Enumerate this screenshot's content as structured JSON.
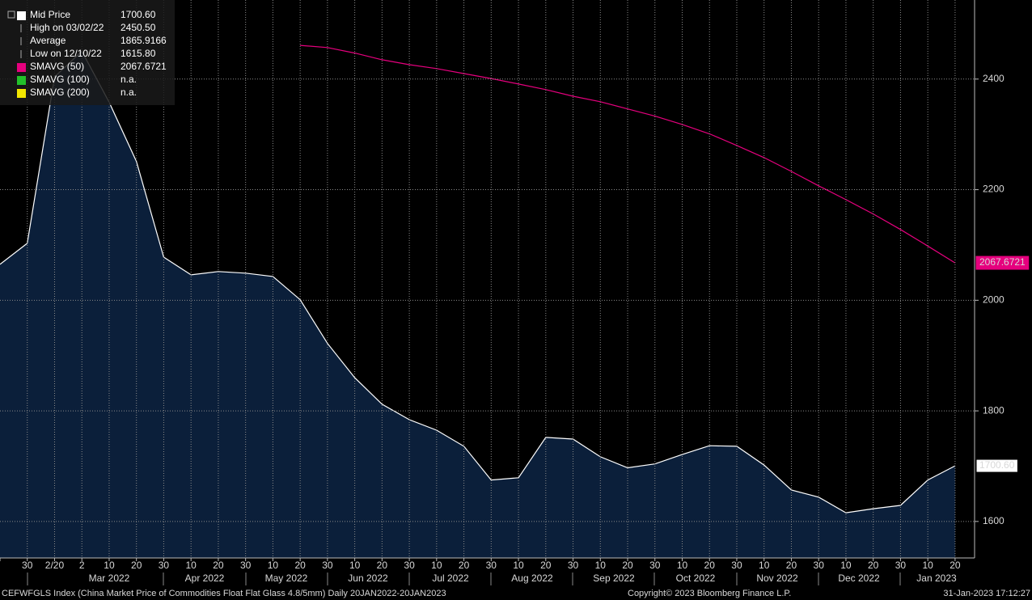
{
  "chart_data": {
    "type": "area",
    "categories": [
      null,
      "30",
      "2/20",
      "2",
      "10",
      "20",
      "30",
      "10",
      "20",
      "30",
      "10",
      "20",
      "30",
      "10",
      "20",
      "30",
      "10",
      "20",
      "30",
      "10",
      "20",
      "30",
      "10",
      "20",
      "30",
      "10",
      "20",
      "30",
      "10",
      "20",
      "30",
      "10",
      "20",
      "30",
      "10",
      "20"
    ],
    "months": [
      "Mar 2022",
      "Apr 2022",
      "May 2022",
      "Jun 2022",
      "Jul 2022",
      "Aug 2022",
      "Sep 2022",
      "Oct 2022",
      "Nov 2022",
      "Dec 2022",
      "Jan 2023"
    ],
    "series": [
      {
        "name": "Mid Price",
        "color": "#ffffff",
        "fill": "#0b1f3a",
        "values": [
          2065,
          2103,
          2404,
          2450.5,
          2358,
          2251,
          2078,
          2046,
          2052,
          2049,
          2043,
          2001,
          1922,
          1860,
          1812,
          1784,
          1765,
          1736,
          1675,
          1679,
          1752,
          1749,
          1717,
          1697,
          1704,
          1721,
          1737,
          1736,
          1702,
          1657,
          1644,
          1615.8,
          1623,
          1629,
          1675,
          1700.6
        ],
        "last_label": "1700.60"
      },
      {
        "name": "SMAVG (50)",
        "color": "#e6007e",
        "values": [
          null,
          null,
          null,
          null,
          null,
          null,
          null,
          null,
          null,
          null,
          null,
          2461,
          2457,
          2447,
          2435,
          2426,
          2419,
          2410,
          2401,
          2391,
          2381,
          2369,
          2359,
          2346,
          2333,
          2318,
          2301,
          2280,
          2258,
          2233,
          2207,
          2182,
          2156,
          2128,
          2098,
          2067.6721
        ],
        "last_label": "2067.6721"
      }
    ],
    "legend": [
      {
        "label": "Mid Price",
        "value": "1700.60",
        "color": "#ffffff"
      },
      {
        "label": "High on 03/02/22",
        "value": "2450.50"
      },
      {
        "label": "Average",
        "value": "1865.9166"
      },
      {
        "label": "Low on 12/10/22",
        "value": "1615.80"
      },
      {
        "label": "SMAVG (50)",
        "value": "2067.6721",
        "color": "#e6007e"
      },
      {
        "label": "SMAVG (100)",
        "value": "n.a.",
        "color": "#22c02a"
      },
      {
        "label": "SMAVG (200)",
        "value": "n.a.",
        "color": "#f2e600"
      }
    ],
    "ylim": [
      1534,
      2543
    ],
    "yticks": [
      1600,
      1800,
      2000,
      2200,
      2400
    ],
    "grid": true,
    "footer_left": "CEFWFGLS Index (China Market Price of Commodities Float Flat Glass 4.8/5mm)  Daily 20JAN2022-20JAN2023",
    "footer_center": "Copyright© 2023 Bloomberg Finance L.P.",
    "footer_right": "31-Jan-2023 17:12:27"
  }
}
